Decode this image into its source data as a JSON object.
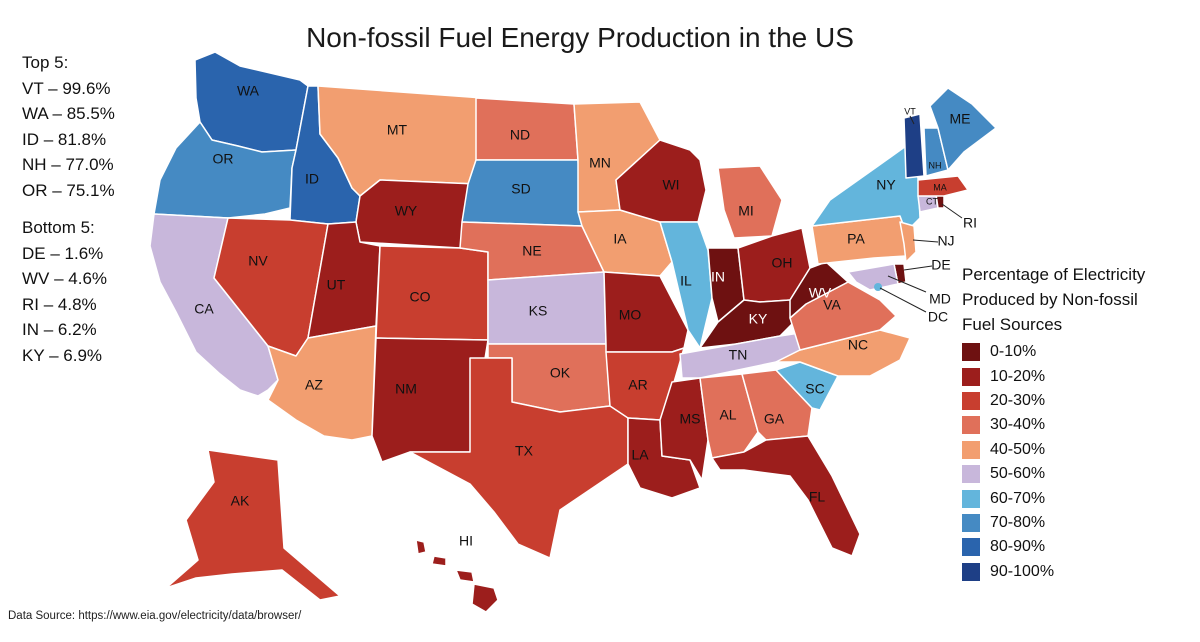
{
  "title": "Non-fossil Fuel Energy Production in the US",
  "top5": {
    "heading": "Top 5:",
    "items": [
      "VT – 99.6%",
      "WA – 85.5%",
      "ID – 81.8%",
      "NH – 77.0%",
      "OR – 75.1%"
    ]
  },
  "bottom5": {
    "heading": "Bottom 5:",
    "items": [
      "DE – 1.6%",
      "WV – 4.6%",
      "RI – 4.8%",
      "IN – 6.2%",
      "KY – 6.9%"
    ]
  },
  "legend": {
    "title_lines": [
      "Percentage of Electricity",
      "Produced by Non-fossil",
      "Fuel Sources"
    ],
    "bins": [
      {
        "label": "0-10%",
        "color": "#6e1111"
      },
      {
        "label": "10-20%",
        "color": "#9c1e1c"
      },
      {
        "label": "20-30%",
        "color": "#c83e2f"
      },
      {
        "label": "30-40%",
        "color": "#e0705a"
      },
      {
        "label": "40-50%",
        "color": "#f29e70"
      },
      {
        "label": "50-60%",
        "color": "#c8b7db"
      },
      {
        "label": "60-70%",
        "color": "#63b5dc"
      },
      {
        "label": "70-80%",
        "color": "#458ac3"
      },
      {
        "label": "80-90%",
        "color": "#2a64ad"
      },
      {
        "label": "90-100%",
        "color": "#1e3f86"
      }
    ]
  },
  "states": [
    {
      "abbr": "WA",
      "bin": 8
    },
    {
      "abbr": "OR",
      "bin": 7
    },
    {
      "abbr": "CA",
      "bin": 5
    },
    {
      "abbr": "ID",
      "bin": 8
    },
    {
      "abbr": "NV",
      "bin": 2
    },
    {
      "abbr": "MT",
      "bin": 4
    },
    {
      "abbr": "WY",
      "bin": 1
    },
    {
      "abbr": "UT",
      "bin": 1
    },
    {
      "abbr": "AZ",
      "bin": 4
    },
    {
      "abbr": "CO",
      "bin": 2
    },
    {
      "abbr": "NM",
      "bin": 1
    },
    {
      "abbr": "ND",
      "bin": 3
    },
    {
      "abbr": "SD",
      "bin": 7
    },
    {
      "abbr": "NE",
      "bin": 3
    },
    {
      "abbr": "KS",
      "bin": 5
    },
    {
      "abbr": "OK",
      "bin": 3
    },
    {
      "abbr": "TX",
      "bin": 2
    },
    {
      "abbr": "MN",
      "bin": 4
    },
    {
      "abbr": "IA",
      "bin": 4
    },
    {
      "abbr": "MO",
      "bin": 1
    },
    {
      "abbr": "AR",
      "bin": 2
    },
    {
      "abbr": "LA",
      "bin": 1
    },
    {
      "abbr": "WI",
      "bin": 1
    },
    {
      "abbr": "IL",
      "bin": 6
    },
    {
      "abbr": "MI",
      "bin": 3
    },
    {
      "abbr": "IN",
      "bin": 0
    },
    {
      "abbr": "OH",
      "bin": 1
    },
    {
      "abbr": "KY",
      "bin": 0
    },
    {
      "abbr": "TN",
      "bin": 5
    },
    {
      "abbr": "MS",
      "bin": 1
    },
    {
      "abbr": "AL",
      "bin": 3
    },
    {
      "abbr": "GA",
      "bin": 3
    },
    {
      "abbr": "FL",
      "bin": 1
    },
    {
      "abbr": "SC",
      "bin": 6
    },
    {
      "abbr": "NC",
      "bin": 4
    },
    {
      "abbr": "VA",
      "bin": 3
    },
    {
      "abbr": "WV",
      "bin": 0
    },
    {
      "abbr": "PA",
      "bin": 4
    },
    {
      "abbr": "NY",
      "bin": 6
    },
    {
      "abbr": "NJ",
      "bin": 4
    },
    {
      "abbr": "DE",
      "bin": 0
    },
    {
      "abbr": "MD",
      "bin": 5
    },
    {
      "abbr": "DC",
      "bin": 6
    },
    {
      "abbr": "CT",
      "bin": 5
    },
    {
      "abbr": "RI",
      "bin": 0
    },
    {
      "abbr": "MA",
      "bin": 2
    },
    {
      "abbr": "VT",
      "bin": 9
    },
    {
      "abbr": "NH",
      "bin": 7
    },
    {
      "abbr": "ME",
      "bin": 7
    },
    {
      "abbr": "AK",
      "bin": 2
    },
    {
      "abbr": "HI",
      "bin": 1
    }
  ],
  "source": "Data Source: https://www.eia.gov/electricity/data/browser/"
}
